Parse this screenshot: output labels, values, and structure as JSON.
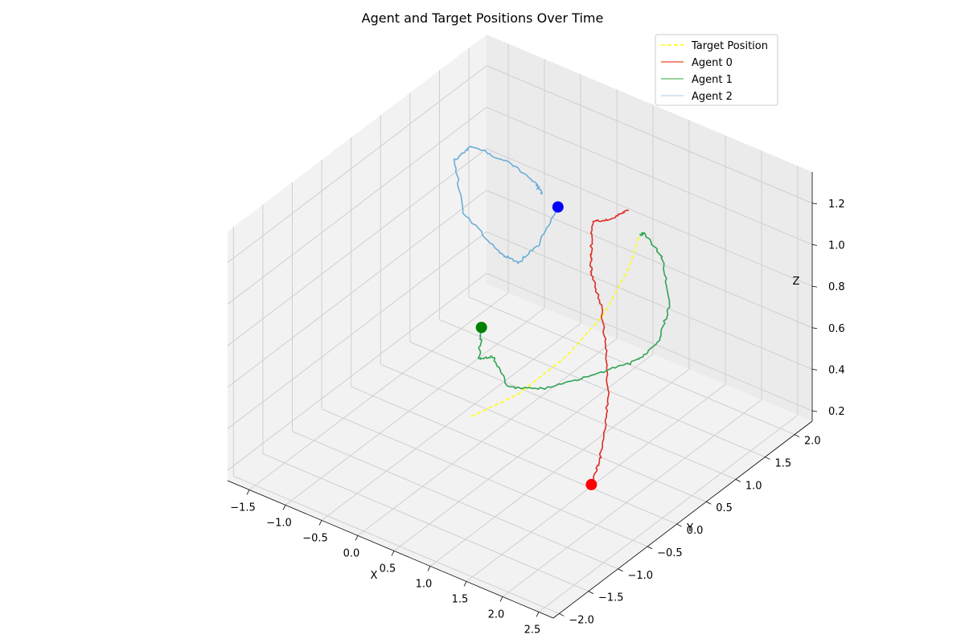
{
  "chart_data": {
    "type": "line3d",
    "title": "Agent and Target Positions Over Time",
    "xlabel": "X",
    "ylabel": "Y",
    "zlabel": "Z",
    "xlim": [
      -1.8,
      2.7
    ],
    "ylim": [
      -2.1,
      2.3
    ],
    "zlim": [
      0.15,
      1.35
    ],
    "xticks": [
      -1.5,
      -1.0,
      -0.5,
      0.0,
      0.5,
      1.0,
      1.5,
      2.0,
      2.5
    ],
    "xtick_labels": [
      "−1.5",
      "−1.0",
      "−0.5",
      "0.0",
      "0.5",
      "1.0",
      "1.5",
      "2.0",
      "2.5"
    ],
    "yticks": [
      -2.0,
      -1.5,
      -1.0,
      -0.5,
      0.0,
      0.5,
      1.0,
      1.5,
      2.0
    ],
    "ytick_labels": [
      "−2.0",
      "−1.5",
      "−1.0",
      "−0.5",
      "0.0",
      "0.5",
      "1.0",
      "1.5",
      "2.0"
    ],
    "zticks": [
      0.2,
      0.4,
      0.6,
      0.8,
      1.0,
      1.2
    ],
    "ztick_labels": [
      "0.2",
      "0.4",
      "0.6",
      "0.8",
      "1.0",
      "1.2"
    ],
    "grid": true,
    "legend_position": "top-right",
    "legend": [
      {
        "label": "Target Position",
        "color": "#ffff00",
        "style": "dashed"
      },
      {
        "label": "Agent 0",
        "color": "#ef6548",
        "style": "solid"
      },
      {
        "label": "Agent 1",
        "color": "#74c476",
        "style": "solid"
      },
      {
        "label": "Agent 2",
        "color": "#c6dbef",
        "style": "solid"
      }
    ],
    "series": [
      {
        "name": "Target Position",
        "color": "#ffff00",
        "style": "dashed",
        "points": [
          [
            0.1,
            -0.3,
            0.35
          ],
          [
            0.5,
            0.0,
            0.45
          ],
          [
            0.85,
            0.4,
            0.6
          ],
          [
            1.05,
            0.8,
            0.75
          ],
          [
            1.1,
            1.15,
            0.9
          ],
          [
            1.05,
            1.4,
            1.0
          ]
        ]
      },
      {
        "name": "Agent 0",
        "color": "#de2d26",
        "start_marker_color": "#ff0000",
        "points": [
          [
            1.6,
            -0.1,
            0.2
          ],
          [
            1.55,
            0.1,
            0.26
          ],
          [
            1.35,
            0.45,
            0.32
          ],
          [
            1.1,
            0.8,
            0.4
          ],
          [
            0.9,
            1.0,
            0.55
          ],
          [
            0.8,
            1.05,
            0.7
          ],
          [
            0.7,
            1.0,
            0.85
          ],
          [
            0.7,
            1.0,
            0.95
          ],
          [
            0.6,
            1.15,
            1.05
          ],
          [
            0.75,
            1.3,
            1.05
          ],
          [
            0.9,
            1.4,
            1.1
          ]
        ]
      },
      {
        "name": "Agent 1",
        "color": "#31a354",
        "start_marker_color": "#008000",
        "points": [
          [
            0.0,
            0.0,
            0.7
          ],
          [
            0.05,
            -0.1,
            0.58
          ],
          [
            0.2,
            -0.05,
            0.6
          ],
          [
            0.45,
            -0.1,
            0.5
          ],
          [
            0.8,
            0.1,
            0.5
          ],
          [
            1.1,
            0.5,
            0.52
          ],
          [
            1.4,
            0.9,
            0.55
          ],
          [
            1.5,
            1.15,
            0.6
          ],
          [
            1.55,
            1.3,
            0.75
          ],
          [
            1.4,
            1.35,
            0.95
          ],
          [
            1.2,
            1.3,
            1.05
          ],
          [
            1.05,
            1.4,
            1.0
          ]
        ]
      },
      {
        "name": "Agent 2",
        "color": "#6baed6",
        "start_marker_color": "#0000ff",
        "points": [
          [
            0.0,
            1.3,
            1.0
          ],
          [
            -0.1,
            1.1,
            0.85
          ],
          [
            -0.3,
            1.0,
            0.75
          ],
          [
            -0.55,
            0.95,
            0.78
          ],
          [
            -0.9,
            0.8,
            0.95
          ],
          [
            -1.1,
            0.9,
            1.15
          ],
          [
            -1.0,
            1.05,
            1.2
          ],
          [
            -0.6,
            1.2,
            1.15
          ],
          [
            -0.35,
            1.35,
            1.05
          ],
          [
            -0.3,
            1.4,
            1.0
          ]
        ]
      }
    ]
  }
}
